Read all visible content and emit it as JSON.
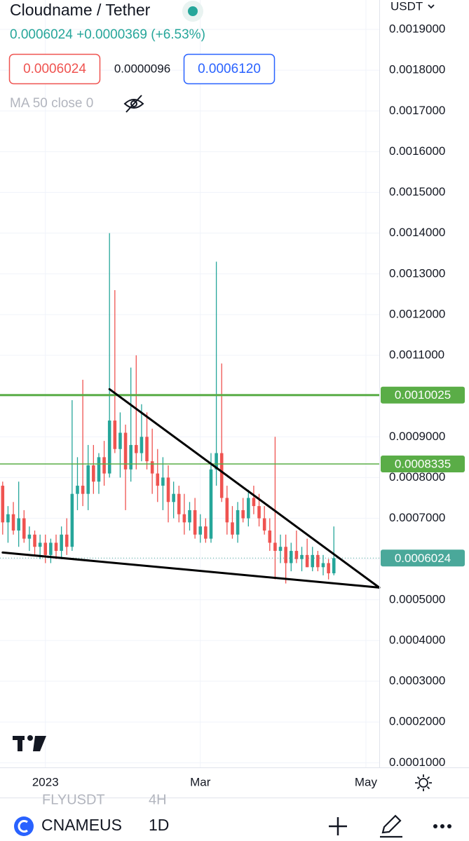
{
  "chart_data": {
    "type": "candlestick",
    "title": "Cloudname / Tether",
    "quote_line": "0.0006024 +0.0000369 (+6.53%)",
    "bid": "0.0006024",
    "spread": "0.0000096",
    "ask": "0.0006120",
    "indicator": "MA 50 close 0",
    "currency": "USDT",
    "symbol": "CNAMEUS",
    "interval": "1D",
    "ghost_symbol": "FLYUSDT",
    "ghost_interval": "4H",
    "categories": [
      null,
      null,
      null,
      null,
      null,
      null,
      null,
      null,
      "2023",
      null,
      null,
      null,
      null,
      null,
      null,
      null,
      null,
      null,
      null,
      null,
      null,
      null,
      null,
      null,
      null,
      null,
      null,
      null,
      null,
      null,
      null,
      null,
      null,
      null,
      null,
      null,
      null,
      "Mar",
      null,
      null,
      null,
      null,
      null,
      null,
      null,
      null,
      null,
      null,
      null,
      null,
      null,
      null,
      null,
      null,
      null,
      null,
      null,
      null,
      null,
      null,
      null,
      null,
      null,
      null,
      null,
      null,
      null,
      null,
      "May",
      null,
      null
    ],
    "open": [
      0.00078,
      0.00069,
      0.00071,
      0.00067,
      0.0007,
      0.00065,
      0.00066,
      0.00063,
      0.00064,
      0.00061,
      0.00064,
      0.00062,
      0.00066,
      0.00063,
      0.00076,
      0.00078,
      0.00076,
      0.00083,
      0.00079,
      0.00085,
      0.00081,
      0.00094,
      0.00087,
      0.00091,
      0.00082,
      0.00088,
      0.00086,
      0.0009,
      0.00084,
      0.00081,
      0.00078,
      0.0008,
      0.00074,
      0.00076,
      0.00071,
      0.00069,
      0.00072,
      0.00066,
      0.00068,
      0.00065,
      0.00082,
      0.00086,
      0.00075,
      0.00069,
      0.00066,
      0.00072,
      0.0007,
      0.00075,
      0.00073,
      0.0007,
      0.00067,
      0.00064,
      0.00062,
      0.00063,
      0.00059,
      0.00062,
      0.0006,
      0.00061,
      0.00058,
      0.00061,
      0.00058,
      0.00059,
      0.000565,
      null,
      null,
      null,
      null,
      null,
      null,
      null,
      null
    ],
    "high": [
      0.00079,
      0.00073,
      0.00074,
      0.00079,
      0.00072,
      0.00068,
      0.00067,
      0.00066,
      0.00066,
      0.00065,
      0.00066,
      0.00068,
      0.0007,
      0.00099,
      0.00085,
      0.00104,
      0.00088,
      0.00088,
      0.00086,
      0.00089,
      0.0014,
      0.00126,
      0.00096,
      0.00093,
      0.00107,
      0.0011,
      0.00098,
      0.00096,
      0.00092,
      0.00087,
      0.00085,
      0.00083,
      0.00079,
      0.00078,
      0.00076,
      0.00074,
      0.00075,
      0.00071,
      0.0007,
      0.00086,
      0.00133,
      0.00108,
      0.00078,
      0.00073,
      0.00074,
      0.00075,
      0.00077,
      0.00078,
      0.00076,
      0.00073,
      0.0007,
      0.0009,
      0.00066,
      0.00066,
      0.00064,
      0.00067,
      0.00063,
      0.00065,
      0.00063,
      0.00062,
      0.00061,
      0.0006,
      0.00068,
      null,
      null,
      null,
      null,
      null,
      null,
      null,
      null
    ],
    "low": [
      0.00066,
      0.00064,
      0.00066,
      0.00063,
      0.00064,
      0.00062,
      0.00061,
      0.0006,
      0.00059,
      0.00059,
      0.0006,
      0.0006,
      0.00061,
      0.00062,
      0.00072,
      0.00073,
      0.00072,
      0.00076,
      0.00076,
      0.00078,
      0.0008,
      0.00086,
      0.0008,
      0.00072,
      0.00079,
      0.00082,
      0.00084,
      0.00082,
      0.00076,
      0.00074,
      0.00072,
      0.00069,
      0.0007,
      0.00069,
      0.00066,
      0.00067,
      0.00065,
      0.00064,
      0.00064,
      0.00064,
      0.00078,
      0.00074,
      0.00066,
      0.00065,
      0.00064,
      0.00069,
      0.00068,
      0.00071,
      0.00068,
      0.00066,
      0.00062,
      0.00055,
      0.00059,
      0.00054,
      0.00057,
      0.00059,
      0.00057,
      0.00058,
      0.00057,
      0.00057,
      0.00056,
      0.00055,
      0.00056,
      null,
      null,
      null,
      null,
      null,
      null,
      null,
      null
    ],
    "close": [
      0.00069,
      0.00071,
      0.00067,
      0.0007,
      0.00065,
      0.00066,
      0.00063,
      0.00064,
      0.00061,
      0.00064,
      0.00062,
      0.00066,
      0.00063,
      0.00076,
      0.00078,
      0.00076,
      0.00083,
      0.00079,
      0.00085,
      0.00081,
      0.00094,
      0.00087,
      0.00091,
      0.00082,
      0.00088,
      0.00086,
      0.0009,
      0.00084,
      0.00081,
      0.00078,
      0.0008,
      0.00074,
      0.00076,
      0.00071,
      0.00069,
      0.00072,
      0.00066,
      0.00068,
      0.00065,
      0.00082,
      0.00086,
      0.00075,
      0.00069,
      0.00066,
      0.00072,
      0.0007,
      0.00075,
      0.00073,
      0.0007,
      0.00067,
      0.00064,
      0.00062,
      0.00063,
      0.00059,
      0.00062,
      0.0006,
      0.00061,
      0.00058,
      0.00061,
      0.00058,
      0.00059,
      0.000565,
      0.0006024,
      null,
      null,
      null,
      null,
      null,
      null,
      null,
      null
    ],
    "up_color": "#26a69a",
    "down_color": "#ef5350",
    "ylim": [
      8.85e-05,
      0.0019723
    ],
    "yticks": [
      {
        "value": 0.0019,
        "label": "0.0019000"
      },
      {
        "value": 0.0018,
        "label": "0.0018000"
      },
      {
        "value": 0.0017,
        "label": "0.0017000"
      },
      {
        "value": 0.0016,
        "label": "0.0016000"
      },
      {
        "value": 0.0015,
        "label": "0.0015000"
      },
      {
        "value": 0.0014,
        "label": "0.0014000"
      },
      {
        "value": 0.0013,
        "label": "0.0013000"
      },
      {
        "value": 0.0012,
        "label": "0.0012000"
      },
      {
        "value": 0.0011,
        "label": "0.0011000"
      },
      {
        "value": 0.001,
        "label": "0.0010000"
      },
      {
        "value": 0.0009,
        "label": "0.0009000"
      },
      {
        "value": 0.0008,
        "label": "0.0008000"
      },
      {
        "value": 0.0007,
        "label": "0.0007000"
      },
      {
        "value": 0.0006,
        "label": "0.0006000"
      },
      {
        "value": 0.0005,
        "label": "0.0005000"
      },
      {
        "value": 0.0004,
        "label": "0.0004000"
      },
      {
        "value": 0.0003,
        "label": "0.0003000"
      },
      {
        "value": 0.0002,
        "label": "0.0002000"
      },
      {
        "value": 0.0001,
        "label": "0.0001000"
      }
    ],
    "grid": true,
    "levels": [
      {
        "value": 0.0010025,
        "label": "0.0010025",
        "color": "#5aad47",
        "width": 3
      },
      {
        "value": 0.0008335,
        "label": "0.0008335",
        "color": "#5aad47",
        "width": 1.5
      }
    ],
    "last_price": {
      "value": 0.0006024,
      "label": "0.0006024",
      "color": "#4aa89a"
    },
    "trendlines": [
      {
        "start": {
          "index": 20,
          "value": 0.001017
        },
        "end": {
          "index": 70.5,
          "value": 0.00053
        }
      },
      {
        "start": {
          "index": 0,
          "value": 0.000616
        },
        "end": {
          "index": 70.5,
          "value": 0.00053
        }
      }
    ]
  }
}
